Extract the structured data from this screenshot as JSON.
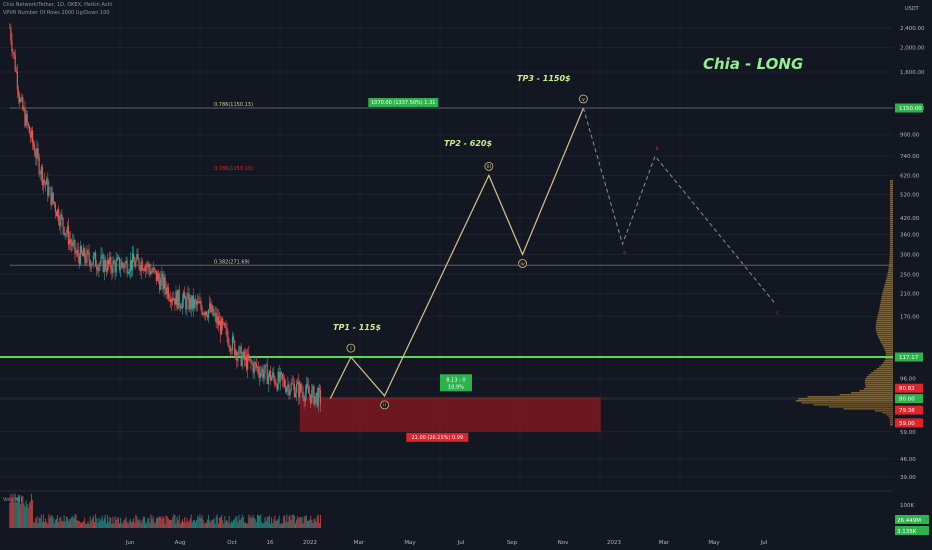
{
  "header": {
    "symbol_line": "Chia Network/Tether, 1D, OKEX, Heikin Ashi",
    "indicator_line": "VPVR Number Of Rows 2000 Up/Down 100",
    "volume_label": "Vol (90)"
  },
  "axis": {
    "currency": "USDT",
    "y_ticks": [
      "2,400.00",
      "2,000.00",
      "1,600.00",
      "1,150.00",
      "900.00",
      "740.00",
      "620.00",
      "520.00",
      "420.00",
      "360.00",
      "300.00",
      "250.00",
      "210.00",
      "170.00",
      "117.17",
      "96.00",
      "80.82",
      "80.00",
      "79.38",
      "59.00",
      "46.00",
      "39.00"
    ],
    "x_ticks": [
      "Jun",
      "Aug",
      "Oct",
      "16",
      "2022",
      "Mar",
      "May",
      "Jul",
      "Sep",
      "Nov",
      "2023",
      "Mar",
      "May",
      "Jul"
    ],
    "volume_ticks": [
      "100K",
      "26.449M",
      "3.135K"
    ]
  },
  "price_badges": {
    "tp3": "1150.00",
    "support": "117.17",
    "top_red": "80.82",
    "current": "80.00",
    "low_red": "79.38",
    "box_low": "59.00"
  },
  "annotations": {
    "chart_title": "Chia - LONG",
    "tp1": "TP1 - 115$",
    "tp2": "TP2 - 620$",
    "tp3": "TP3 - 1150$",
    "fib_786": "0.786(1150.13)",
    "fib_382": "0.382(271.69)",
    "fib_top_label": "0.786(1150.13)",
    "tp3_box_text": "1070.00 (1337.50%) 1.31",
    "box_upper_text": "8.13 : 0",
    "box_upper_sub": "10.9%",
    "box_lower_text": "21.00 (26.25%) 0.99",
    "wave_labels": [
      "i",
      "ii",
      "iii",
      "iv",
      "v"
    ],
    "correction_labels": [
      "a",
      "b",
      "c"
    ]
  },
  "colors": {
    "background": "#131722",
    "support_line": "#5dd65d",
    "wave": "#d8c08c",
    "box_red": "#8c1a20",
    "title_green": "#8ef08e",
    "tp_label": "#c8f08e",
    "badge_red": "#e0242c",
    "badge_green": "#2db24e"
  },
  "chart_data": {
    "type": "candlestick",
    "series_price_path_usdt": [
      {
        "date": "2021-05-10",
        "price": 2400
      },
      {
        "date": "2021-05-20",
        "price": 1200
      },
      {
        "date": "2021-06-10",
        "price": 600
      },
      {
        "date": "2021-07-10",
        "price": 300
      },
      {
        "date": "2021-08-10",
        "price": 270
      },
      {
        "date": "2021-09-10",
        "price": 280
      },
      {
        "date": "2021-10-10",
        "price": 200
      },
      {
        "date": "2021-11-10",
        "price": 180
      },
      {
        "date": "2021-12-10",
        "price": 115
      },
      {
        "date": "2022-01-10",
        "price": 95
      },
      {
        "date": "2022-02-20",
        "price": 80
      }
    ],
    "projected_waves": [
      {
        "label": "start",
        "date": "2022-03-01",
        "price": 80
      },
      {
        "label": "i",
        "date": "2022-03-20",
        "price": 117
      },
      {
        "label": "ii",
        "date": "2022-04-20",
        "price": 82
      },
      {
        "label": "iii",
        "date": "2022-07-25",
        "price": 620
      },
      {
        "label": "iv",
        "date": "2022-08-25",
        "price": 300
      },
      {
        "label": "v",
        "date": "2022-10-20",
        "price": 1150
      }
    ],
    "projected_correction": [
      {
        "label": "a",
        "date": "2022-11-25",
        "price": 330
      },
      {
        "label": "b",
        "date": "2022-12-25",
        "price": 740
      },
      {
        "label": "c",
        "date": "2023-04-15",
        "price": 190
      }
    ],
    "levels": {
      "support": 117.17,
      "tp1": 115,
      "tp2": 620,
      "tp3": 1150,
      "fib_382": 271.69,
      "fib_786": 1150.13
    },
    "y_scale": "log",
    "ylim": [
      39,
      2400
    ],
    "xlim": [
      "2021-05-01",
      "2023-08-01"
    ]
  }
}
